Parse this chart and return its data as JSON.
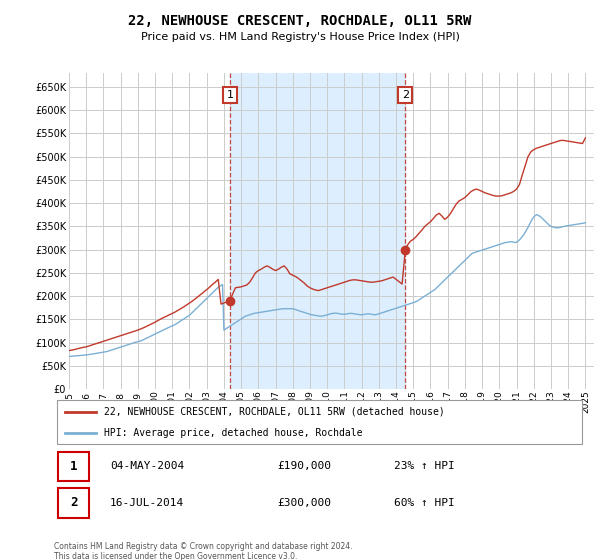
{
  "title": "22, NEWHOUSE CRESCENT, ROCHDALE, OL11 5RW",
  "subtitle": "Price paid vs. HM Land Registry's House Price Index (HPI)",
  "ylabel_ticks": [
    "£0",
    "£50K",
    "£100K",
    "£150K",
    "£200K",
    "£250K",
    "£300K",
    "£350K",
    "£400K",
    "£450K",
    "£500K",
    "£550K",
    "£600K",
    "£650K"
  ],
  "ylim": [
    0,
    680000
  ],
  "ytick_vals": [
    0,
    50000,
    100000,
    150000,
    200000,
    250000,
    300000,
    350000,
    400000,
    450000,
    500000,
    550000,
    600000,
    650000
  ],
  "hpi_color": "#7bafd4",
  "price_color": "#c0392b",
  "marker_color": "#c0392b",
  "vline_color": "#c0392b",
  "shade_color": "#ddeeff",
  "background_color": "#ffffff",
  "grid_color": "#cccccc",
  "purchase1_year": 2004.35,
  "purchase1_price": 190000,
  "purchase2_year": 2014.54,
  "purchase2_price": 300000,
  "legend_label_price": "22, NEWHOUSE CRESCENT, ROCHDALE, OL11 5RW (detached house)",
  "legend_label_hpi": "HPI: Average price, detached house, Rochdale",
  "table_rows": [
    {
      "num": "1",
      "date": "04-MAY-2004",
      "price": "£190,000",
      "hpi": "23% ↑ HPI"
    },
    {
      "num": "2",
      "date": "16-JUL-2014",
      "price": "£300,000",
      "hpi": "60% ↑ HPI"
    }
  ],
  "footnote": "Contains HM Land Registry data © Crown copyright and database right 2024.\nThis data is licensed under the Open Government Licence v3.0.",
  "x_start": 1995.0,
  "x_end": 2025.5,
  "xtick_years": [
    1995,
    1996,
    1997,
    1998,
    1999,
    2000,
    2001,
    2002,
    2003,
    2004,
    2005,
    2006,
    2007,
    2008,
    2009,
    2010,
    2011,
    2012,
    2013,
    2014,
    2015,
    2016,
    2017,
    2018,
    2019,
    2020,
    2021,
    2022,
    2023,
    2024,
    2025
  ],
  "hpi_x": [
    1995.0,
    1995.08,
    1995.17,
    1995.25,
    1995.33,
    1995.42,
    1995.5,
    1995.58,
    1995.67,
    1995.75,
    1995.83,
    1995.92,
    1996.0,
    1996.08,
    1996.17,
    1996.25,
    1996.33,
    1996.42,
    1996.5,
    1996.58,
    1996.67,
    1996.75,
    1996.83,
    1996.92,
    1997.0,
    1997.08,
    1997.17,
    1997.25,
    1997.33,
    1997.42,
    1997.5,
    1997.58,
    1997.67,
    1997.75,
    1997.83,
    1997.92,
    1998.0,
    1998.08,
    1998.17,
    1998.25,
    1998.33,
    1998.42,
    1998.5,
    1998.58,
    1998.67,
    1998.75,
    1998.83,
    1998.92,
    1999.0,
    1999.08,
    1999.17,
    1999.25,
    1999.33,
    1999.42,
    1999.5,
    1999.58,
    1999.67,
    1999.75,
    1999.83,
    1999.92,
    2000.0,
    2000.08,
    2000.17,
    2000.25,
    2000.33,
    2000.42,
    2000.5,
    2000.58,
    2000.67,
    2000.75,
    2000.83,
    2000.92,
    2001.0,
    2001.08,
    2001.17,
    2001.25,
    2001.33,
    2001.42,
    2001.5,
    2001.58,
    2001.67,
    2001.75,
    2001.83,
    2001.92,
    2002.0,
    2002.08,
    2002.17,
    2002.25,
    2002.33,
    2002.42,
    2002.5,
    2002.58,
    2002.67,
    2002.75,
    2002.83,
    2002.92,
    2003.0,
    2003.08,
    2003.17,
    2003.25,
    2003.33,
    2003.42,
    2003.5,
    2003.58,
    2003.67,
    2003.75,
    2003.83,
    2003.92,
    2004.0,
    2004.08,
    2004.17,
    2004.25,
    2004.33,
    2004.42,
    2004.5,
    2004.58,
    2004.67,
    2004.75,
    2004.83,
    2004.92,
    2005.0,
    2005.08,
    2005.17,
    2005.25,
    2005.33,
    2005.42,
    2005.5,
    2005.58,
    2005.67,
    2005.75,
    2005.83,
    2005.92,
    2006.0,
    2006.08,
    2006.17,
    2006.25,
    2006.33,
    2006.42,
    2006.5,
    2006.58,
    2006.67,
    2006.75,
    2006.83,
    2006.92,
    2007.0,
    2007.08,
    2007.17,
    2007.25,
    2007.33,
    2007.42,
    2007.5,
    2007.58,
    2007.67,
    2007.75,
    2007.83,
    2007.92,
    2008.0,
    2008.08,
    2008.17,
    2008.25,
    2008.33,
    2008.42,
    2008.5,
    2008.58,
    2008.67,
    2008.75,
    2008.83,
    2008.92,
    2009.0,
    2009.08,
    2009.17,
    2009.25,
    2009.33,
    2009.42,
    2009.5,
    2009.58,
    2009.67,
    2009.75,
    2009.83,
    2009.92,
    2010.0,
    2010.08,
    2010.17,
    2010.25,
    2010.33,
    2010.42,
    2010.5,
    2010.58,
    2010.67,
    2010.75,
    2010.83,
    2010.92,
    2011.0,
    2011.08,
    2011.17,
    2011.25,
    2011.33,
    2011.42,
    2011.5,
    2011.58,
    2011.67,
    2011.75,
    2011.83,
    2011.92,
    2012.0,
    2012.08,
    2012.17,
    2012.25,
    2012.33,
    2012.42,
    2012.5,
    2012.58,
    2012.67,
    2012.75,
    2012.83,
    2012.92,
    2013.0,
    2013.08,
    2013.17,
    2013.25,
    2013.33,
    2013.42,
    2013.5,
    2013.58,
    2013.67,
    2013.75,
    2013.83,
    2013.92,
    2014.0,
    2014.08,
    2014.17,
    2014.25,
    2014.33,
    2014.42,
    2014.5,
    2014.58,
    2014.67,
    2014.75,
    2014.83,
    2014.92,
    2015.0,
    2015.08,
    2015.17,
    2015.25,
    2015.33,
    2015.42,
    2015.5,
    2015.58,
    2015.67,
    2015.75,
    2015.83,
    2015.92,
    2016.0,
    2016.08,
    2016.17,
    2016.25,
    2016.33,
    2016.42,
    2016.5,
    2016.58,
    2016.67,
    2016.75,
    2016.83,
    2016.92,
    2017.0,
    2017.08,
    2017.17,
    2017.25,
    2017.33,
    2017.42,
    2017.5,
    2017.58,
    2017.67,
    2017.75,
    2017.83,
    2017.92,
    2018.0,
    2018.08,
    2018.17,
    2018.25,
    2018.33,
    2018.42,
    2018.5,
    2018.58,
    2018.67,
    2018.75,
    2018.83,
    2018.92,
    2019.0,
    2019.08,
    2019.17,
    2019.25,
    2019.33,
    2019.42,
    2019.5,
    2019.58,
    2019.67,
    2019.75,
    2019.83,
    2019.92,
    2020.0,
    2020.08,
    2020.17,
    2020.25,
    2020.33,
    2020.42,
    2020.5,
    2020.58,
    2020.67,
    2020.75,
    2020.83,
    2020.92,
    2021.0,
    2021.08,
    2021.17,
    2021.25,
    2021.33,
    2021.42,
    2021.5,
    2021.58,
    2021.67,
    2021.75,
    2021.83,
    2021.92,
    2022.0,
    2022.08,
    2022.17,
    2022.25,
    2022.33,
    2022.42,
    2022.5,
    2022.58,
    2022.67,
    2022.75,
    2022.83,
    2022.92,
    2023.0,
    2023.08,
    2023.17,
    2023.25,
    2023.33,
    2023.42,
    2023.5,
    2023.58,
    2023.67,
    2023.75,
    2023.83,
    2023.92,
    2024.0,
    2024.08,
    2024.17,
    2024.25,
    2024.33,
    2024.42,
    2024.5,
    2024.58,
    2024.67,
    2024.75,
    2024.83,
    2024.92,
    2025.0
  ],
  "hpi_y": [
    70000,
    70500,
    71000,
    71200,
    71500,
    71800,
    72000,
    72200,
    72500,
    72800,
    73000,
    73200,
    73500,
    74000,
    74500,
    75000,
    75500,
    76000,
    76500,
    77000,
    77500,
    78000,
    78500,
    79000,
    79500,
    80000,
    80800,
    81500,
    82500,
    83500,
    84500,
    85500,
    86500,
    87500,
    88500,
    89500,
    90500,
    91500,
    92500,
    93500,
    94500,
    95500,
    96500,
    97500,
    98500,
    99500,
    100500,
    101500,
    102000,
    103000,
    104000,
    105000,
    106500,
    108000,
    109500,
    111000,
    112500,
    114000,
    115500,
    117000,
    118500,
    120000,
    121500,
    123000,
    124500,
    126000,
    127500,
    129000,
    130500,
    132000,
    133500,
    135000,
    136000,
    137500,
    139000,
    141000,
    143000,
    145000,
    147000,
    149000,
    151000,
    153000,
    155000,
    157000,
    159000,
    162000,
    165000,
    168000,
    171000,
    174000,
    177000,
    180000,
    183000,
    186000,
    189000,
    192000,
    195000,
    198000,
    201000,
    204000,
    207000,
    210000,
    213000,
    216000,
    219000,
    221000,
    223000,
    225000,
    127000,
    129000,
    131000,
    133000,
    135000,
    137000,
    139000,
    141000,
    143000,
    145000,
    147000,
    149000,
    151000,
    153000,
    155000,
    157000,
    158000,
    159000,
    160000,
    161000,
    162000,
    163000,
    163500,
    164000,
    164500,
    165000,
    165500,
    166000,
    166500,
    167000,
    167500,
    168000,
    168500,
    169000,
    169500,
    170000,
    170500,
    171000,
    171500,
    172000,
    172500,
    173000,
    173000,
    173000,
    173000,
    173000,
    173000,
    173000,
    173000,
    172000,
    171000,
    170000,
    169000,
    168000,
    167000,
    166000,
    165000,
    164000,
    163000,
    162000,
    161000,
    160000,
    159500,
    159000,
    158500,
    158000,
    157500,
    157000,
    157000,
    157500,
    158000,
    159000,
    160000,
    161000,
    162000,
    162500,
    163000,
    163500,
    163500,
    163000,
    162500,
    162000,
    161500,
    161000,
    161000,
    161500,
    162000,
    162500,
    163000,
    163000,
    162500,
    162000,
    161500,
    161000,
    160500,
    160000,
    160000,
    160500,
    161000,
    161500,
    162000,
    162000,
    161500,
    161000,
    160500,
    160000,
    160000,
    161000,
    162000,
    163000,
    164000,
    165000,
    166000,
    167000,
    168000,
    169000,
    170000,
    171000,
    172000,
    173000,
    174000,
    175000,
    176000,
    177000,
    178000,
    179000,
    180000,
    181000,
    182000,
    183000,
    184000,
    185000,
    186000,
    187000,
    188500,
    190000,
    192000,
    194000,
    196000,
    198000,
    200000,
    202000,
    204000,
    206000,
    208000,
    210000,
    212000,
    214000,
    217000,
    220000,
    223000,
    226000,
    229000,
    232000,
    235000,
    238000,
    241000,
    244000,
    247000,
    250000,
    253000,
    256000,
    259000,
    262000,
    265000,
    268000,
    271000,
    274000,
    277000,
    280000,
    283000,
    286000,
    289000,
    292000,
    293000,
    294000,
    295000,
    296000,
    297000,
    298000,
    299000,
    300000,
    301000,
    302000,
    303000,
    304000,
    305000,
    306000,
    307000,
    308000,
    309000,
    310000,
    311000,
    312000,
    313000,
    314000,
    315000,
    315500,
    316000,
    316500,
    317000,
    317000,
    316000,
    315000,
    316000,
    318000,
    321000,
    324000,
    328000,
    332000,
    337000,
    342000,
    348000,
    354000,
    360000,
    366000,
    370000,
    373000,
    375000,
    374000,
    372000,
    370000,
    367000,
    364000,
    361000,
    358000,
    355000,
    352000,
    350000,
    349000,
    348000,
    347000,
    347000,
    347000,
    347500,
    348000,
    349000,
    350000,
    350500,
    351000,
    351500,
    352000,
    352500,
    353000,
    353500,
    354000,
    354500,
    355000,
    355500,
    356000,
    356500,
    357000,
    358000
  ],
  "price_x": [
    1995.0,
    1995.17,
    1995.33,
    1995.5,
    1995.67,
    1995.83,
    1996.0,
    1996.17,
    1996.33,
    1996.5,
    1996.67,
    1996.83,
    1997.0,
    1997.17,
    1997.33,
    1997.5,
    1997.67,
    1997.83,
    1998.0,
    1998.17,
    1998.33,
    1998.5,
    1998.67,
    1998.83,
    1999.0,
    1999.17,
    1999.33,
    1999.5,
    1999.67,
    1999.83,
    2000.0,
    2000.17,
    2000.33,
    2000.5,
    2000.67,
    2000.83,
    2001.0,
    2001.17,
    2001.33,
    2001.5,
    2001.67,
    2001.83,
    2002.0,
    2002.17,
    2002.33,
    2002.5,
    2002.67,
    2002.83,
    2003.0,
    2003.17,
    2003.33,
    2003.5,
    2003.67,
    2003.83,
    2004.35,
    2004.5,
    2004.67,
    2004.83,
    2005.0,
    2005.17,
    2005.33,
    2005.5,
    2005.67,
    2005.83,
    2006.0,
    2006.17,
    2006.33,
    2006.5,
    2006.67,
    2006.83,
    2007.0,
    2007.17,
    2007.33,
    2007.5,
    2007.67,
    2007.83,
    2008.0,
    2008.17,
    2008.33,
    2008.5,
    2008.67,
    2008.83,
    2009.0,
    2009.17,
    2009.33,
    2009.5,
    2009.67,
    2009.83,
    2010.0,
    2010.17,
    2010.33,
    2010.5,
    2010.67,
    2010.83,
    2011.0,
    2011.17,
    2011.33,
    2011.5,
    2011.67,
    2011.83,
    2012.0,
    2012.17,
    2012.33,
    2012.5,
    2012.67,
    2012.83,
    2013.0,
    2013.17,
    2013.33,
    2013.5,
    2013.67,
    2013.83,
    2014.35,
    2014.54,
    2014.67,
    2014.83,
    2015.0,
    2015.17,
    2015.33,
    2015.5,
    2015.67,
    2015.83,
    2016.0,
    2016.17,
    2016.33,
    2016.5,
    2016.67,
    2016.83,
    2017.0,
    2017.17,
    2017.33,
    2017.5,
    2017.67,
    2017.83,
    2018.0,
    2018.17,
    2018.33,
    2018.5,
    2018.67,
    2018.83,
    2019.0,
    2019.17,
    2019.33,
    2019.5,
    2019.67,
    2019.83,
    2020.0,
    2020.17,
    2020.33,
    2020.5,
    2020.67,
    2020.83,
    2021.0,
    2021.17,
    2021.33,
    2021.5,
    2021.67,
    2021.83,
    2022.0,
    2022.17,
    2022.33,
    2022.5,
    2022.67,
    2022.83,
    2023.0,
    2023.17,
    2023.33,
    2023.5,
    2023.67,
    2023.83,
    2024.0,
    2024.17,
    2024.33,
    2024.5,
    2024.67,
    2024.83,
    2025.0
  ],
  "price_y": [
    83000,
    84000,
    85500,
    87000,
    88500,
    90000,
    91000,
    93000,
    95000,
    97000,
    99000,
    101000,
    103000,
    105000,
    107000,
    109000,
    111000,
    113000,
    115000,
    117000,
    119000,
    121000,
    123000,
    125000,
    127000,
    129500,
    132000,
    135000,
    138000,
    141000,
    144000,
    147500,
    151000,
    154000,
    157000,
    160000,
    163000,
    166000,
    169500,
    173000,
    177000,
    181000,
    185000,
    189500,
    194000,
    199000,
    204000,
    209000,
    214000,
    219500,
    225000,
    230000,
    236000,
    183000,
    190000,
    204000,
    218000,
    219000,
    220000,
    222000,
    224000,
    230000,
    240000,
    250000,
    255000,
    258000,
    262000,
    265000,
    262000,
    258000,
    255000,
    258000,
    262000,
    265000,
    258000,
    248000,
    245000,
    242000,
    238000,
    233000,
    228000,
    222000,
    218000,
    215000,
    213000,
    212000,
    214000,
    216000,
    218000,
    220000,
    222000,
    224000,
    226000,
    228000,
    230000,
    232000,
    234000,
    235000,
    235000,
    234000,
    233000,
    232000,
    231000,
    230000,
    230000,
    231000,
    232000,
    233000,
    235000,
    237000,
    239000,
    241000,
    226000,
    300000,
    310000,
    318000,
    322000,
    328000,
    335000,
    342000,
    350000,
    355000,
    360000,
    367000,
    374000,
    378000,
    372000,
    365000,
    370000,
    378000,
    388000,
    398000,
    405000,
    408000,
    412000,
    418000,
    424000,
    428000,
    430000,
    428000,
    425000,
    422000,
    420000,
    418000,
    416000,
    415000,
    415000,
    416000,
    418000,
    420000,
    422000,
    425000,
    430000,
    440000,
    460000,
    480000,
    500000,
    510000,
    515000,
    518000,
    520000,
    522000,
    524000,
    526000,
    528000,
    530000,
    532000,
    534000,
    535000,
    534000,
    533000,
    532000,
    531000,
    530000,
    529000,
    528000,
    540000
  ]
}
